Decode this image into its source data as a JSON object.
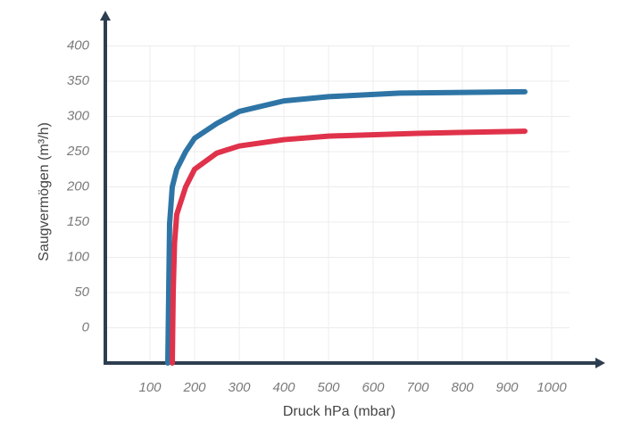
{
  "chart_data": {
    "type": "line",
    "x_label": "Druck hPa (mbar)",
    "y_label": "Saugvermögen (m³/h)",
    "xlim": [
      0,
      1120
    ],
    "ylim": [
      -50,
      450
    ],
    "xticks": [
      100,
      200,
      300,
      400,
      500,
      600,
      700,
      800,
      900,
      1000
    ],
    "yticks": [
      0,
      50,
      100,
      150,
      200,
      250,
      300,
      350,
      400
    ],
    "grid": true,
    "series": [
      {
        "color": "#2e75a6",
        "x": [
          140,
          142,
          144,
          150,
          160,
          180,
          200,
          250,
          300,
          400,
          500,
          660,
          940
        ],
        "values": [
          -50,
          50,
          148,
          200,
          225,
          250,
          269,
          290,
          307,
          322,
          328,
          333,
          335
        ]
      },
      {
        "color": "#e0324a",
        "x": [
          150,
          152,
          155,
          160,
          180,
          200,
          250,
          300,
          400,
          500,
          700,
          940
        ],
        "values": [
          -50,
          50,
          120,
          161,
          200,
          225,
          248,
          258,
          267,
          272,
          276,
          279
        ]
      }
    ]
  }
}
